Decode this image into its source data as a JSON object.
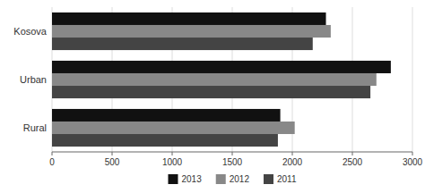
{
  "chart_data": {
    "type": "bar",
    "orientation": "horizontal",
    "categories": [
      "Rural",
      "Urban",
      "Kosova"
    ],
    "series": [
      {
        "name": "2013",
        "color": "#111111",
        "values": [
          1900,
          2820,
          2280
        ]
      },
      {
        "name": "2012",
        "color": "#888888",
        "values": [
          2020,
          2700,
          2320
        ]
      },
      {
        "name": "2011",
        "color": "#444444",
        "values": [
          1880,
          2650,
          2170
        ]
      }
    ],
    "xlim": [
      0,
      3000
    ],
    "xticks": [
      0,
      500,
      1000,
      1500,
      2000,
      2500,
      3000
    ],
    "grid": true,
    "legend": "bottom"
  }
}
